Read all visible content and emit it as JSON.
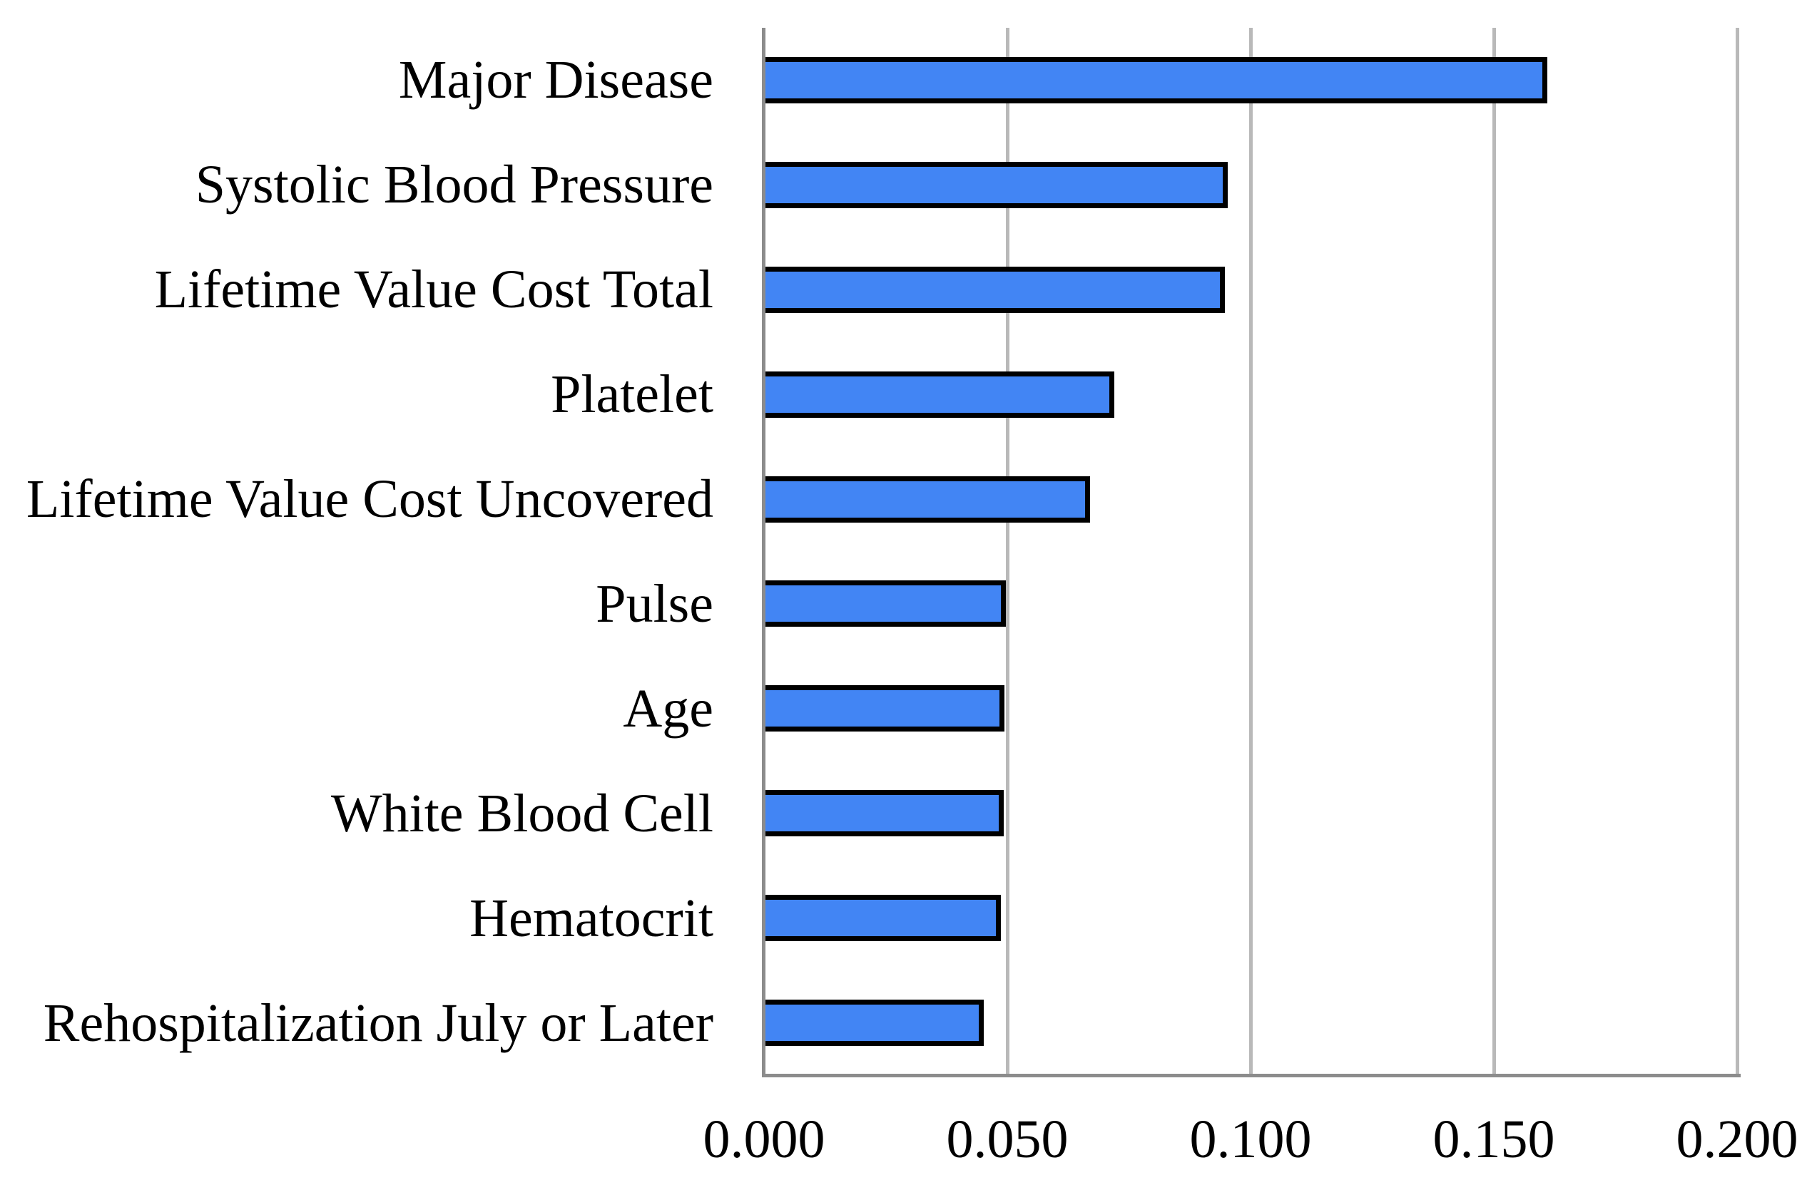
{
  "chart_data": {
    "type": "bar",
    "orientation": "horizontal",
    "title": "",
    "xlabel": "",
    "ylabel": "",
    "categories": [
      "Major Disease",
      "Systolic Blood Pressure",
      "Lifetime Value Cost Total",
      "Platelet",
      "Lifetime Value Cost Uncovered",
      "Pulse",
      "Age",
      "White Blood Cell",
      "Hematocrit",
      "Rehospitalization July or Later"
    ],
    "values": [
      0.161,
      0.0953,
      0.0947,
      0.072,
      0.067,
      0.0497,
      0.0494,
      0.0493,
      0.0487,
      0.0452
    ],
    "xlim": [
      0,
      0.2
    ],
    "x_ticks": [
      0,
      0.05,
      0.1,
      0.15,
      0.2
    ],
    "x_tick_labels": [
      "0.000",
      "0.050",
      "0.100",
      "0.150",
      "0.200"
    ],
    "grid": true,
    "legend": false,
    "colors": {
      "bar_fill": "#4285F4",
      "bar_border": "#000000",
      "gridline": "#b9b9b9",
      "axis_line": "#8c8c8c",
      "text": "#000000"
    }
  }
}
